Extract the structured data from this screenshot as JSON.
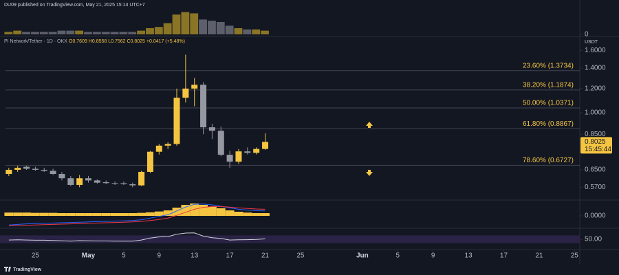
{
  "header": {
    "text": "DU09 published on TradingView.com, May 21, 2025 15:14 UTC+7"
  },
  "footer": {
    "logo": "TradingView"
  },
  "chart_data": [
    {
      "type": "volume",
      "values": [
        2,
        3,
        2,
        2,
        2,
        2,
        3,
        3,
        3,
        2,
        2,
        2,
        2,
        2,
        2,
        3,
        5,
        6,
        9,
        16,
        18,
        17,
        12,
        11,
        10,
        7,
        5,
        4,
        4,
        3
      ],
      "up_color": "#8a7526",
      "down_color": "#5d606b",
      "ylim": [
        0,
        20
      ],
      "yticks": [
        0
      ]
    },
    {
      "type": "candlestick",
      "title": "PI Network/Tether · 1D · OKX",
      "ohlc_text": "O0.7609 H0.8558 L0.7562 C0.8025 +0.0417 (+5.48%)",
      "unit_label": "USDT",
      "x": [
        0,
        1,
        2,
        3,
        4,
        5,
        6,
        7,
        8,
        9,
        10,
        11,
        12,
        13,
        14,
        15,
        16,
        17,
        18,
        19,
        20,
        21,
        22,
        23,
        24,
        25,
        26,
        27,
        28,
        29
      ],
      "open": [
        0.63,
        0.65,
        0.665,
        0.655,
        0.65,
        0.645,
        0.63,
        0.61,
        0.58,
        0.61,
        0.6,
        0.592,
        0.588,
        0.587,
        0.583,
        0.578,
        0.64,
        0.745,
        0.78,
        0.79,
        1.12,
        1.2,
        1.235,
        0.896,
        0.873,
        0.728,
        0.691,
        0.747,
        0.739,
        0.7609
      ],
      "high": [
        0.66,
        0.67,
        0.67,
        0.665,
        0.66,
        0.655,
        0.64,
        0.62,
        0.625,
        0.62,
        0.605,
        0.6,
        0.595,
        0.595,
        0.59,
        0.645,
        0.75,
        0.79,
        0.8,
        1.2,
        1.55,
        1.3,
        1.26,
        0.92,
        0.9,
        0.75,
        0.76,
        0.77,
        0.77,
        0.8558
      ],
      "low": [
        0.62,
        0.64,
        0.65,
        0.645,
        0.64,
        0.625,
        0.6,
        0.575,
        0.57,
        0.59,
        0.585,
        0.583,
        0.58,
        0.58,
        0.57,
        0.575,
        0.635,
        0.73,
        0.76,
        0.78,
        1.08,
        1.05,
        0.85,
        0.82,
        0.72,
        0.66,
        0.68,
        0.73,
        0.73,
        0.7562
      ],
      "close": [
        0.65,
        0.66,
        0.655,
        0.65,
        0.645,
        0.63,
        0.61,
        0.58,
        0.61,
        0.6,
        0.59,
        0.588,
        0.585,
        0.583,
        0.578,
        0.64,
        0.745,
        0.78,
        0.79,
        1.12,
        1.2,
        1.235,
        0.896,
        0.873,
        0.728,
        0.691,
        0.747,
        0.739,
        0.7609,
        0.8025
      ],
      "up_color": "#f5c542",
      "down_color": "#9598a1",
      "log_scale": true,
      "ylim": [
        0.52,
        1.76
      ],
      "yticks": [
        {
          "value": 1.6,
          "label": "1.6000"
        },
        {
          "value": 1.4,
          "label": "1.4000"
        },
        {
          "value": 1.2,
          "label": "1.2000"
        },
        {
          "value": 1.0,
          "label": "1.0000"
        },
        {
          "value": 0.85,
          "label": "0.8500"
        },
        {
          "value": 0.65,
          "label": "0.6500"
        },
        {
          "value": 0.57,
          "label": "0.5700"
        }
      ],
      "xlim": [
        -1,
        64.6
      ],
      "xticks": [
        {
          "value": 3,
          "label": "25"
        },
        {
          "value": 9,
          "label": "May"
        },
        {
          "value": 13,
          "label": "5"
        },
        {
          "value": 17,
          "label": "9"
        },
        {
          "value": 21,
          "label": "13"
        },
        {
          "value": 25,
          "label": "17"
        },
        {
          "value": 29,
          "label": "21"
        },
        {
          "value": 33,
          "label": "25"
        },
        {
          "value": 40,
          "label": "Jun"
        },
        {
          "value": 44,
          "label": "5"
        },
        {
          "value": 48,
          "label": "9"
        },
        {
          "value": 52,
          "label": "13"
        },
        {
          "value": 56,
          "label": "17"
        },
        {
          "value": 60,
          "label": "21"
        },
        {
          "value": 64,
          "label": "25"
        }
      ],
      "levels": [
        {
          "value": 1.3734,
          "label": "23.60% (1.3734)"
        },
        {
          "value": 1.1874,
          "label": "38.20% (1.1874)"
        },
        {
          "value": 1.0371,
          "label": "50.00% (1.0371)"
        },
        {
          "value": 0.8867,
          "label": "61.80% (0.8867)"
        },
        {
          "value": 0.6727,
          "label": "78.60% (0.6727)"
        }
      ],
      "level_color": "#434651",
      "level_label_color": "#f5c542",
      "last_price": {
        "value": 0.8025,
        "label": "0.8025"
      },
      "countdown": "15:45:44"
    },
    {
      "type": "macd",
      "histogram": {
        "color": "#f5c542",
        "values": [
          0.012,
          0.012,
          0.012,
          0.011,
          0.011,
          0.011,
          0.01,
          0.01,
          0.01,
          0.01,
          0.01,
          0.01,
          0.01,
          0.01,
          0.01,
          0.011,
          0.013,
          0.016,
          0.02,
          0.03,
          0.04,
          0.045,
          0.04,
          0.034,
          0.028,
          0.02,
          0.015,
          0.012,
          0.01,
          0.01
        ]
      },
      "series": [
        {
          "color": "#2962ff",
          "values": [
            -0.033,
            -0.031,
            -0.029,
            -0.028,
            -0.027,
            -0.026,
            -0.025,
            -0.024,
            -0.023,
            -0.022,
            -0.021,
            -0.02,
            -0.019,
            -0.018,
            -0.017,
            -0.014,
            -0.008,
            -0.002,
            0.004,
            0.018,
            0.032,
            0.042,
            0.043,
            0.04,
            0.035,
            0.029,
            0.024,
            0.021,
            0.019,
            0.018
          ]
        },
        {
          "color": "#f23645",
          "values": [
            -0.036,
            -0.035,
            -0.034,
            -0.033,
            -0.032,
            -0.031,
            -0.03,
            -0.029,
            -0.028,
            -0.027,
            -0.026,
            -0.025,
            -0.024,
            -0.023,
            -0.022,
            -0.02,
            -0.017,
            -0.013,
            -0.008,
            0.002,
            0.013,
            0.024,
            0.031,
            0.034,
            0.034,
            0.032,
            0.029,
            0.027,
            0.025,
            0.024
          ]
        }
      ],
      "ylim": [
        -0.04,
        0.055
      ],
      "yticks": [
        {
          "value": 0,
          "label": "0.0000"
        }
      ]
    },
    {
      "type": "rsi",
      "series": [
        {
          "color": "#d1d4dc",
          "values": [
            46,
            47,
            46,
            45,
            45,
            44,
            42,
            40,
            43,
            42,
            41,
            41,
            40,
            40,
            40,
            46,
            56,
            62,
            64,
            76,
            82,
            83,
            66,
            58,
            54,
            46,
            47,
            48,
            49,
            52
          ]
        }
      ],
      "band": [
        30,
        70
      ],
      "band_color": "#2a2346",
      "ylim": [
        0,
        100
      ],
      "yticks": [
        {
          "value": 50,
          "label": "50.00"
        }
      ]
    }
  ]
}
